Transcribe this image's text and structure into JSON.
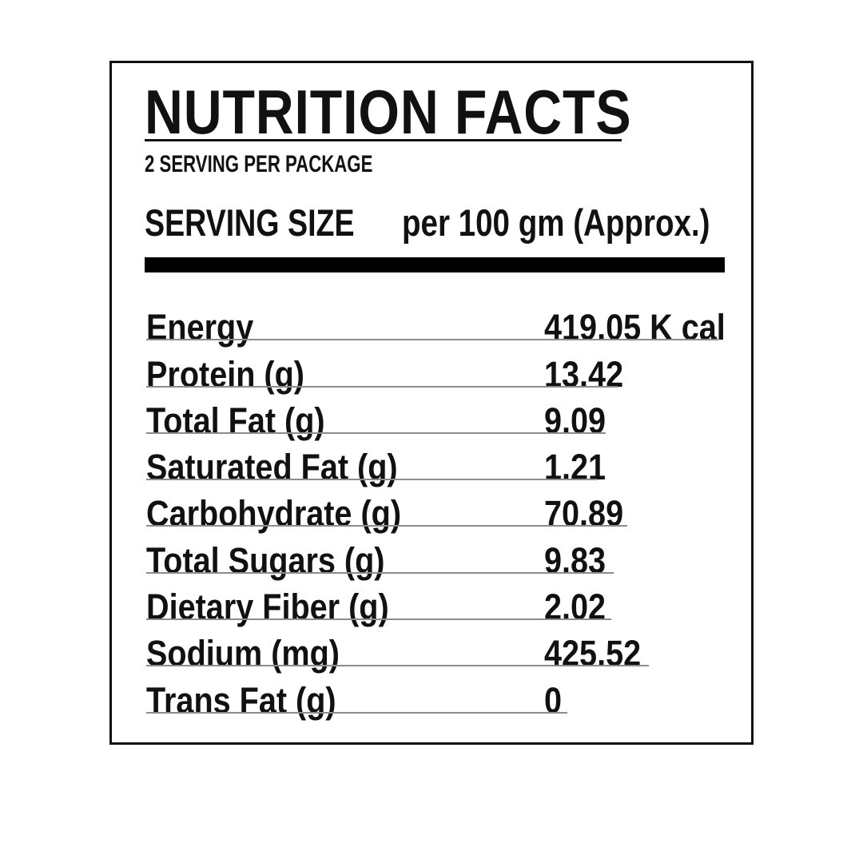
{
  "label": {
    "title": "NUTRITION FACTS",
    "servings_per_package": "2 SERVING PER PACKAGE",
    "serving_size": {
      "label": "SERVING SIZE",
      "value": "per 100 gm (Approx.)"
    },
    "nutrients": [
      {
        "name": "Energy",
        "value": "419.05 K cal"
      },
      {
        "name": "Protein (g)",
        "value": "13.42"
      },
      {
        "name": "Total Fat (g)",
        "value": "9.09"
      },
      {
        "name": "Saturated Fat (g)",
        "value": "1.21"
      },
      {
        "name": "Carbohydrate (g)",
        "value": "70.89"
      },
      {
        "name": "Total Sugars (g)",
        "value": "9.83"
      },
      {
        "name": "Dietary Fiber (g)",
        "value": "2.02"
      },
      {
        "name": "Sodium (mg)",
        "value": "425.52"
      },
      {
        "name": "Trans Fat (g)",
        "value": "0"
      }
    ],
    "colors": {
      "text": "#111111",
      "border": "#111111",
      "divider_bar": "#000000",
      "row_rule": "#8c8c8c",
      "background": "#ffffff"
    }
  }
}
